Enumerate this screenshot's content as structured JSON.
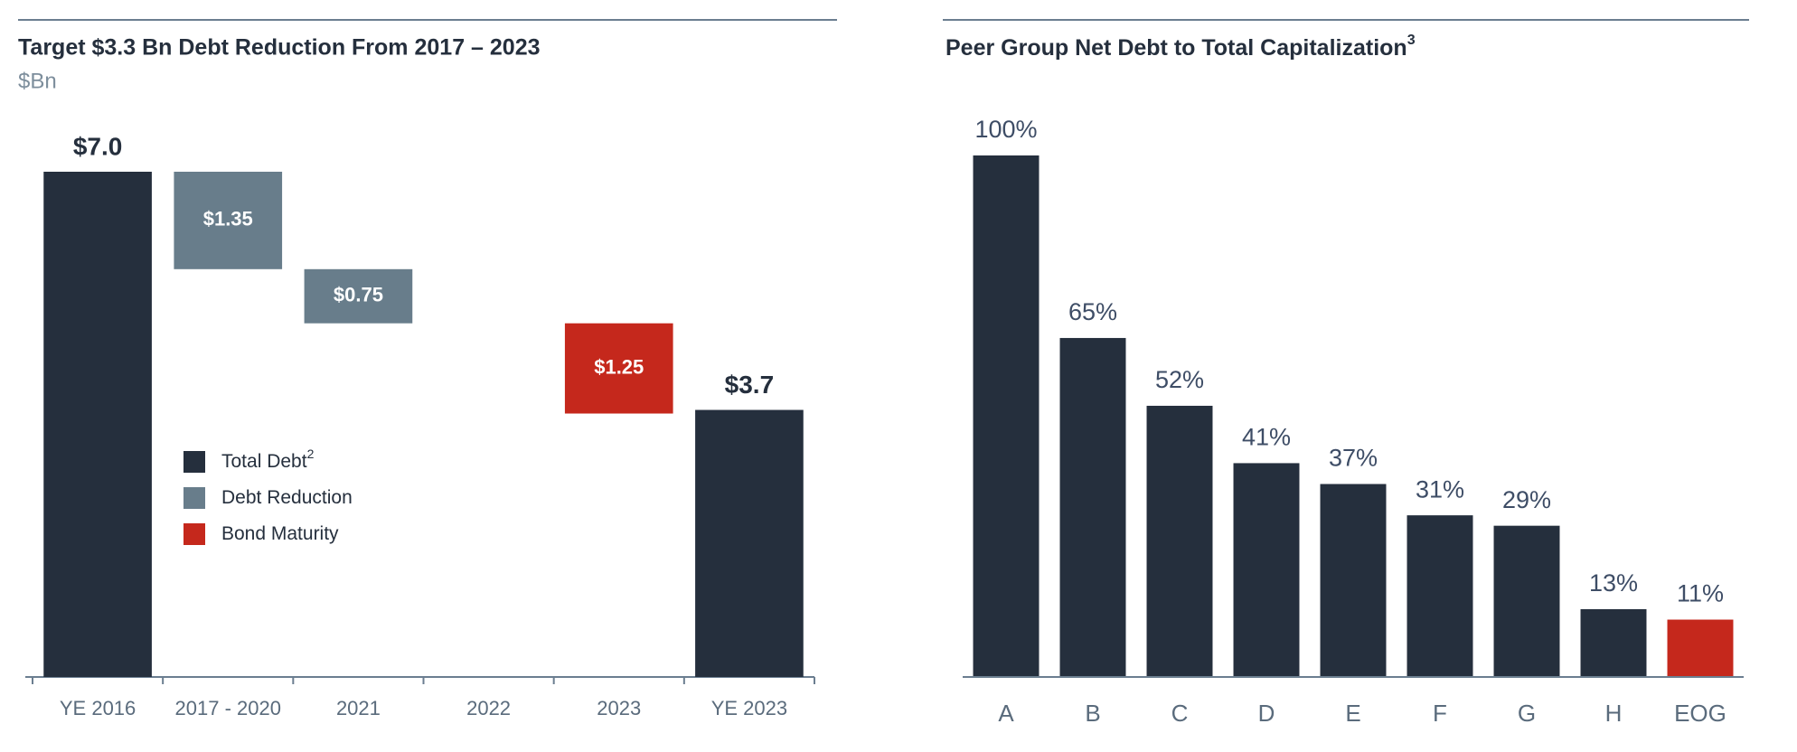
{
  "chart_data": [
    {
      "type": "waterfall",
      "title": "Target $3.3 Bn Debt Reduction From 2017 – 2023",
      "subtitle": "$Bn",
      "categories": [
        "YE 2016",
        "2017 - 2020",
        "2021",
        "2022",
        "2023",
        "YE 2023"
      ],
      "values": [
        7.0,
        1.35,
        0.75,
        null,
        1.25,
        3.7
      ],
      "value_labels": [
        "$7.0",
        "$1.35",
        "$0.75",
        null,
        "$1.25",
        "$3.7"
      ],
      "bar_kinds": [
        0,
        1,
        1,
        null,
        2,
        0
      ],
      "legend": [
        {
          "name": "Total Debt",
          "superscript": "2",
          "color": "#252f3d",
          "kind": "total"
        },
        {
          "name": "Debt Reduction",
          "color": "#687d8b",
          "kind": "decrease"
        },
        {
          "name": "Bond Maturity",
          "color": "#c5281c",
          "kind": "decrease"
        }
      ]
    },
    {
      "type": "bar",
      "title": "Peer Group Net Debt to Total Capitalization",
      "title_superscript": "3",
      "categories": [
        "A",
        "B",
        "C",
        "D",
        "E",
        "F",
        "G",
        "H",
        "EOG"
      ],
      "values": [
        100,
        65,
        52,
        41,
        37,
        31,
        29,
        13,
        11
      ],
      "value_labels": [
        "100%",
        "65%",
        "52%",
        "41%",
        "37%",
        "31%",
        "29%",
        "13%",
        "11%"
      ],
      "colors": [
        "#252f3d",
        "#252f3d",
        "#252f3d",
        "#252f3d",
        "#252f3d",
        "#252f3d",
        "#252f3d",
        "#252f3d",
        "#c5281c"
      ]
    }
  ]
}
